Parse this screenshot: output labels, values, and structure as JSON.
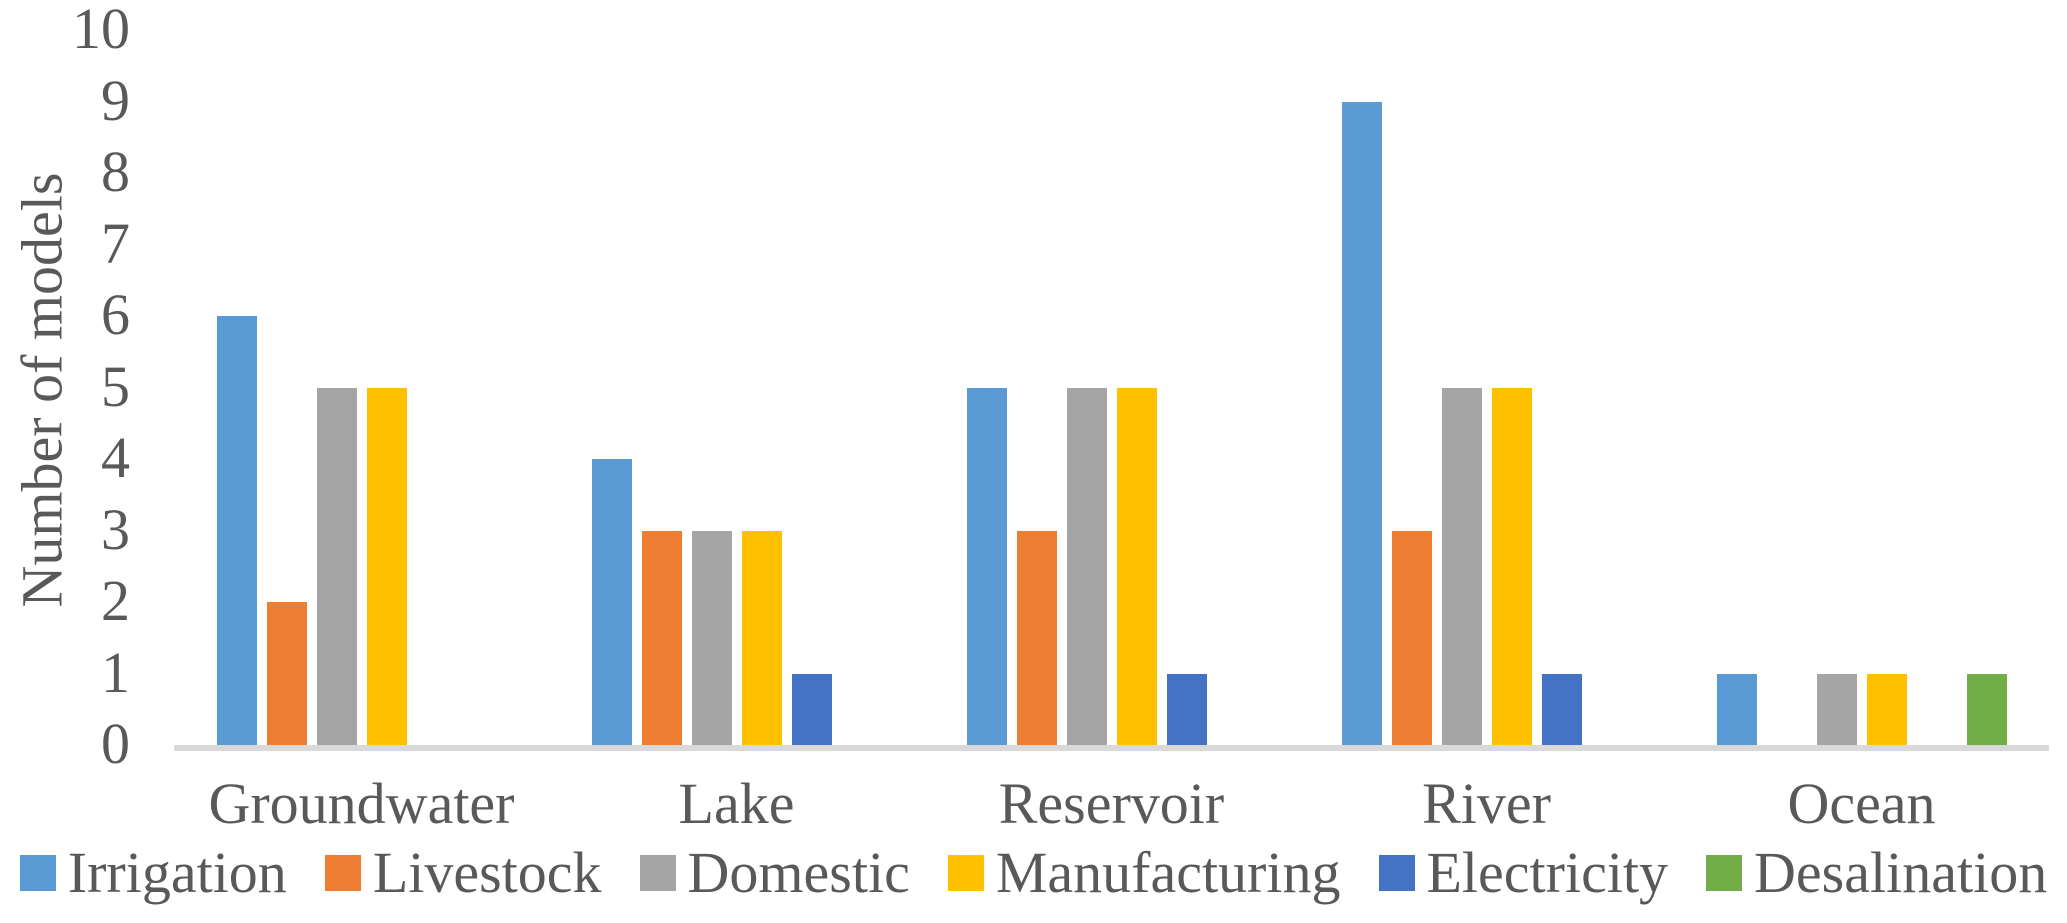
{
  "chart_data": {
    "type": "bar",
    "title": "",
    "xlabel": "",
    "ylabel": "Number of models",
    "categories": [
      "Groundwater",
      "Lake",
      "Reservoir",
      "River",
      "Ocean"
    ],
    "series": [
      {
        "name": "Irrigation",
        "color": "#5B9BD5",
        "values": [
          6,
          4,
          5,
          9,
          1
        ]
      },
      {
        "name": "Livestock",
        "color": "#ED7D31",
        "values": [
          2,
          3,
          3,
          3,
          0
        ]
      },
      {
        "name": "Domestic",
        "color": "#A5A5A5",
        "values": [
          5,
          3,
          5,
          5,
          1
        ]
      },
      {
        "name": "Manufacturing",
        "color": "#FFC000",
        "values": [
          5,
          3,
          5,
          5,
          1
        ]
      },
      {
        "name": "Electricity",
        "color": "#4472C4",
        "values": [
          0,
          1,
          1,
          1,
          0
        ]
      },
      {
        "name": "Desalination",
        "color": "#70AD47",
        "values": [
          0,
          0,
          0,
          0,
          1
        ]
      }
    ],
    "ylim": [
      0,
      10
    ],
    "yticks": [
      0,
      1,
      2,
      3,
      4,
      5,
      6,
      7,
      8,
      9,
      10
    ],
    "grid": false,
    "legend_position": "bottom",
    "axis_line_color": "#D9D9D9",
    "text_color": "#595959"
  }
}
